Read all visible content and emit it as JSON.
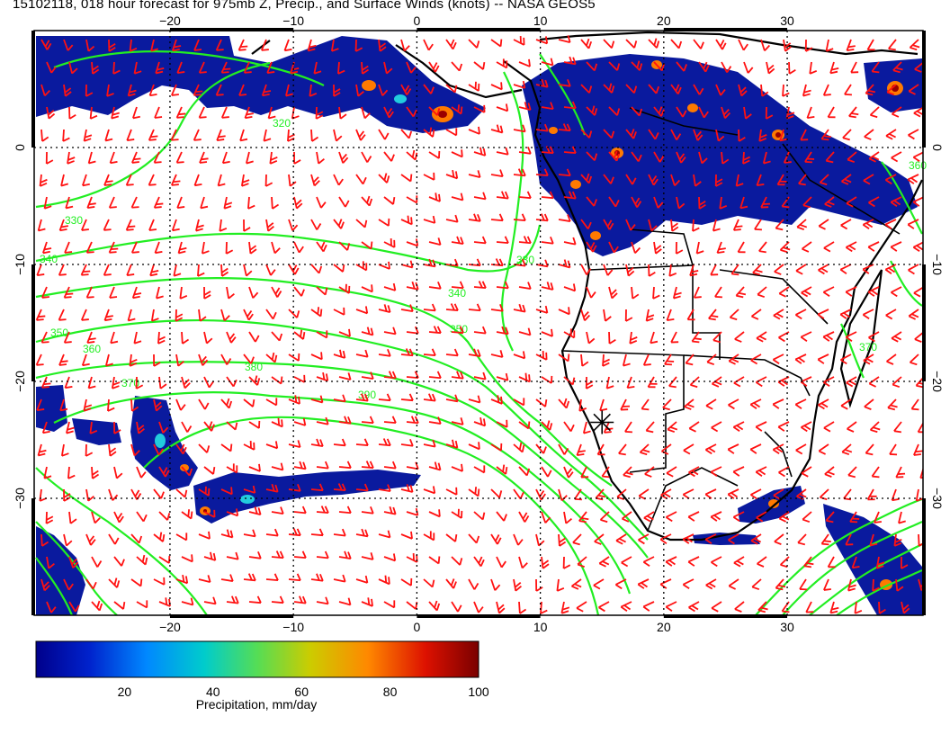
{
  "title": "15102118, 018 hour forecast for 975mb Z, Precip., and Surface Winds (knots) -- NASA GEOS5",
  "map": {
    "lon_range": [
      -31,
      41
    ],
    "lat_range": [
      10,
      -40
    ],
    "lon_ticks": [
      -20,
      -10,
      0,
      10,
      20,
      30
    ],
    "lat_ticks": [
      0,
      -10,
      -20,
      -30
    ],
    "lon_tick_labels": [
      "−20",
      "−10",
      "0",
      "10",
      "20",
      "30"
    ],
    "lat_tick_labels": [
      "0",
      "−10",
      "−20",
      "−30"
    ],
    "grid": "dotted",
    "contour_color": "#22ee22",
    "wind_barb_color": "#ff1111",
    "coastline_color": "#000000",
    "marker": {
      "type": "star",
      "lon": 15,
      "lat": -23.5
    }
  },
  "contour_labels": [
    "330",
    "340",
    "350",
    "360",
    "370",
    "380",
    "390",
    "320",
    "330",
    "340",
    "350",
    "360",
    "370"
  ],
  "colorbar": {
    "label": "Precipitation, mm/day",
    "tick_labels": [
      "20",
      "40",
      "60",
      "80",
      "100"
    ],
    "min": 0,
    "max": 100,
    "ticks": [
      20,
      40,
      60,
      80,
      100
    ],
    "colors": [
      "#00008b",
      "#0022cc",
      "#0088ff",
      "#00cccc",
      "#55dd55",
      "#cccc00",
      "#ff8800",
      "#dd1100",
      "#7a0000"
    ]
  }
}
